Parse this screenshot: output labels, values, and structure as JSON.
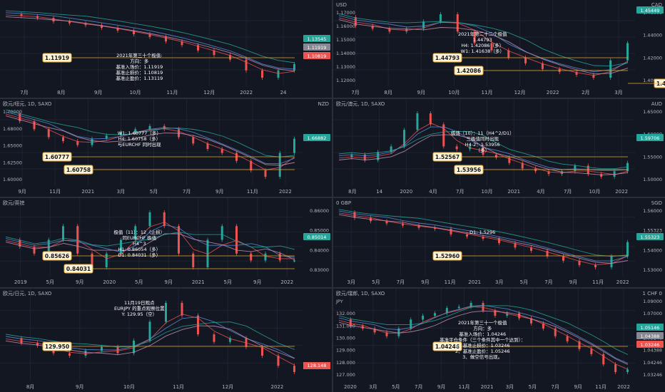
{
  "colors": {
    "bg": "#131722",
    "grid": "#1f2330",
    "text": "#b2b5be",
    "label_bg": "#fff3d6",
    "label_border": "#e6a72e",
    "line_red": "#ef5350",
    "line_blue": "#5b8dd9",
    "line_teal": "#26a69a",
    "line_pink": "#c48fb5",
    "up": "#26a69a",
    "down": "#ef5350"
  },
  "panels": [
    {
      "id": "eurusd",
      "pos": [
        0,
        0,
        465,
        137
      ],
      "header": "",
      "unit": "",
      "xticks": [
        "7月",
        "8月",
        "9月",
        "10月",
        "11月",
        "12月",
        "2022",
        "24"
      ],
      "yticks": [],
      "price_badges": [
        {
          "text": "1.13545",
          "color": "#26a69a"
        },
        {
          "text": "1.11919",
          "color": "#868993"
        },
        {
          "text": "1.10819",
          "color": "#ef5350"
        }
      ],
      "labels": [
        {
          "text": "1.11919"
        }
      ],
      "notes": [
        "2021年第三十个极值:",
        "方向：多",
        "基准入场价：1.11919",
        "基准止损价：1.10819",
        "基准止盈价：1.13119"
      ],
      "chart_data": {
        "type": "line",
        "series": [
          {
            "values": [
              1.19,
              1.188,
              1.186,
              1.182,
              1.18,
              1.178,
              1.175,
              1.172,
              1.168,
              1.165,
              1.16,
              1.156,
              1.15,
              1.145,
              1.14,
              1.128,
              1.12,
              1.128,
              1.135
            ]
          }
        ]
      }
    },
    {
      "id": "usdcad",
      "pos": [
        467,
        0,
        465,
        137
      ],
      "header": "USD",
      "unit": "CAD",
      "xticks": [
        "7月",
        "8月",
        "9月",
        "10月",
        "11月",
        "12月",
        "2022",
        "2月",
        "3月"
      ],
      "yticks": [
        "1.17000",
        "1.16000",
        "1.15000",
        "1.14000",
        "1.13000",
        "1.12000"
      ],
      "price_badges": [
        {
          "text": "1.45449",
          "color": "#26a69a"
        }
      ],
      "right_ticks": [
        "1.46000",
        "1.44000",
        "1.42000",
        "1.40000"
      ],
      "labels": [
        {
          "text": "1.44793"
        },
        {
          "text": "1.42086"
        },
        {
          "text": "1.41638"
        }
      ],
      "notes": [
        "2021年第二十二个极值",
        "1.44793",
        "H4: 1.42086（多）",
        "W1: 1.41638（多）"
      ],
      "chart_data": {
        "type": "line",
        "series": [
          {
            "values": [
              1.168,
              1.162,
              1.16,
              1.158,
              1.16,
              1.165,
              1.17,
              1.158,
              1.15,
              1.145,
              1.14,
              1.136,
              1.132,
              1.13,
              1.128,
              1.126,
              1.138,
              1.15
            ]
          }
        ]
      }
    },
    {
      "id": "gbpnzd",
      "pos": [
        0,
        139,
        465,
        137
      ],
      "header": "欧元/纽元, 1D, SAXO",
      "unit": "NZD",
      "xticks": [
        "9月",
        "11月",
        "2021",
        "3月",
        "5月",
        "7月",
        "9月",
        "11月",
        "2022"
      ],
      "yticks": [
        "1.70000",
        "1.68000",
        "1.65000",
        "1.62500",
        "1.60000"
      ],
      "price_badges": [
        {
          "text": "1.66882",
          "color": "#26a69a"
        }
      ],
      "labels": [
        {
          "text": "1.60777"
        },
        {
          "text": "1.60758"
        }
      ],
      "notes": [
        "W1: 1.60777（多）",
        "H4: 1.60758（多）",
        "与EURCHF 同时出现"
      ],
      "chart_data": {
        "type": "line",
        "series": [
          {
            "values": [
              1.7,
              1.69,
              1.68,
              1.67,
              1.665,
              1.66,
              1.668,
              1.672,
              1.676,
              1.68,
              1.684,
              1.68,
              1.67,
              1.662,
              1.655,
              1.65,
              1.64,
              1.628,
              1.62,
              1.65,
              1.668
            ]
          }
        ]
      }
    },
    {
      "id": "euraud",
      "pos": [
        467,
        139,
        465,
        137
      ],
      "header": "欧元/澳元, 1D, SAXO",
      "unit": "AUD",
      "xticks": [
        "8月",
        "14",
        "2020",
        "4月",
        "7月",
        "10月",
        "2021",
        "4月",
        "7月",
        "10月",
        "2022"
      ],
      "yticks": [],
      "right_ticks": [
        "1.65000",
        "1.60000",
        "1.55000",
        "1.50000"
      ],
      "price_badges": [
        {
          "text": "1.59706",
          "color": "#26a69a"
        }
      ],
      "labels": [
        {
          "text": "1.52567"
        },
        {
          "text": "1.53956"
        }
      ],
      "notes": [
        "极值（10）：11（H4^2/D1）",
        "三极值同时出现",
        "H4-2：1.53956",
        "（多）"
      ],
      "chart_data": {
        "type": "line",
        "series": [
          {
            "values": [
              1.62,
              1.63,
              1.61,
              1.64,
              1.66,
              1.72,
              1.78,
              1.74,
              1.66,
              1.65,
              1.66,
              1.63,
              1.62,
              1.6,
              1.58,
              1.57,
              1.56,
              1.57,
              1.59,
              1.56,
              1.55,
              1.57,
              1.6
            ]
          }
        ]
      }
    },
    {
      "id": "eurgbp",
      "pos": [
        0,
        278,
        465,
        125
      ],
      "header": "欧元/英镑",
      "unit": "",
      "xticks": [
        "2019",
        "5月",
        "9月",
        "2020",
        "5月",
        "9月",
        "2021",
        "5月",
        "9月",
        "2022"
      ],
      "yticks": [],
      "right_ticks": [
        "0.86000",
        "0.85000",
        "0.84000",
        "0.83000"
      ],
      "price_badges": [
        {
          "text": "0.85014",
          "color": "#26a69a"
        }
      ],
      "labels": [
        {
          "text": "0.85626"
        },
        {
          "text": "0.84031"
        }
      ],
      "notes": [
        "极值（11）：12（止损）",
        "同EURCHF 极值",
        "H4^3",
        "H1: 0.86054（多）",
        "D1: 0.84031（多）"
      ],
      "chart_data": {
        "type": "line",
        "series": [
          {
            "values": [
              0.88,
              0.87,
              0.86,
              0.88,
              0.9,
              0.86,
              0.84,
              0.86,
              0.88,
              0.9,
              0.92,
              0.9,
              0.86,
              0.84,
              0.88,
              0.9,
              0.86,
              0.85,
              0.86,
              0.85,
              0.85
            ]
          }
        ]
      }
    },
    {
      "id": "gbpsgd",
      "pos": [
        467,
        278,
        465,
        125
      ],
      "header": "0 GBP",
      "unit": "SGD",
      "xticks": [
        "3月",
        "5月",
        "7月",
        "9月",
        "11月",
        "2021",
        "3月",
        "5月",
        "7月",
        "9月",
        "11月",
        "2022"
      ],
      "yticks": [],
      "right_ticks": [
        "1.56000",
        "1.55323",
        "1.54000",
        "1.53000"
      ],
      "price_badges": [
        {
          "text": "1.55323",
          "color": "#26a69a"
        }
      ],
      "labels": [
        {
          "text": "1.52960"
        }
      ],
      "notes": [
        "D1: 1.5296"
      ],
      "chart_data": {
        "type": "line",
        "series": [
          {
            "values": [
              1.58,
              1.575,
              1.572,
              1.57,
              1.568,
              1.566,
              1.565,
              1.56,
              1.558,
              1.556,
              1.552,
              1.548,
              1.545,
              1.54,
              1.536,
              1.532,
              1.53,
              1.54,
              1.553
            ]
          }
        ]
      }
    },
    {
      "id": "eurjpy",
      "pos": [
        0,
        405,
        465,
        145
      ],
      "header": "欧元/日元, 1D, SAXO",
      "unit": "",
      "xticks": [
        "8月",
        "9月",
        "10月",
        "11月",
        "12月",
        "2022"
      ],
      "yticks": [],
      "price_badges": [],
      "labels": [
        {
          "text": "129.950"
        }
      ],
      "notes": [
        "11月19日观点",
        "EURJPY 的重点观察位置",
        "Y: 129.95（空）"
      ],
      "chart_data": {
        "type": "line",
        "series": [
          {
            "values": [
              130.2,
              129.8,
              129.6,
              129.0,
              128.8,
              129.2,
              129.5,
              129.0,
              130.0,
              131.5,
              133.0,
              132.0,
              130.5,
              129.9,
              130.2,
              129.5,
              128.8,
              128.0,
              127.5
            ]
          }
        ]
      }
    },
    {
      "id": "eurchf",
      "pos": [
        467,
        405,
        465,
        145
      ],
      "header": "欧元/瑞郎, 1D, SAXO",
      "unit": "1 CHF 0",
      "xticks": [
        "2020",
        "3月",
        "5月",
        "7月",
        "9月",
        "11月",
        "2021",
        "3月",
        "5月",
        "7月",
        "9月",
        "11月",
        "2022"
      ],
      "yticks": [
        "JPY",
        "132.000",
        "131.000",
        "130.000",
        "129.000",
        "128.000",
        "127.000"
      ],
      "right_ticks": [
        "1.09000",
        "1.07000",
        "1.06000",
        "1.05146",
        "1.04388",
        "1.04246",
        "1.03246"
      ],
      "price_badges": [
        {
          "text": "1.05146",
          "color": "#26a69a"
        },
        {
          "text": "1.04388",
          "color": "#868993"
        },
        {
          "text": "1.03246",
          "color": "#ef5350"
        }
      ],
      "labels": [
        {
          "text": "1.04246"
        }
      ],
      "notes": [
        "2021年第三十一个极值",
        "方向：多",
        "基准入场价：1.04246",
        "基准平仓条件（三个条件其中一个达到）：",
        "1、基准止损价：1.03246",
        "2、基准止盈价：1.05246",
        "3、做空信号出现。"
      ],
      "chart_data": {
        "type": "line",
        "series": [
          {
            "values": [
              1.085,
              1.08,
              1.078,
              1.075,
              1.072,
              1.078,
              1.085,
              1.088,
              1.09,
              1.094,
              1.095,
              1.098,
              1.092,
              1.088,
              1.09,
              1.086,
              1.082,
              1.078,
              1.072,
              1.068,
              1.062,
              1.058,
              1.05,
              1.044,
              1.046
            ]
          }
        ]
      }
    }
  ],
  "jpy_badge": "128.148"
}
